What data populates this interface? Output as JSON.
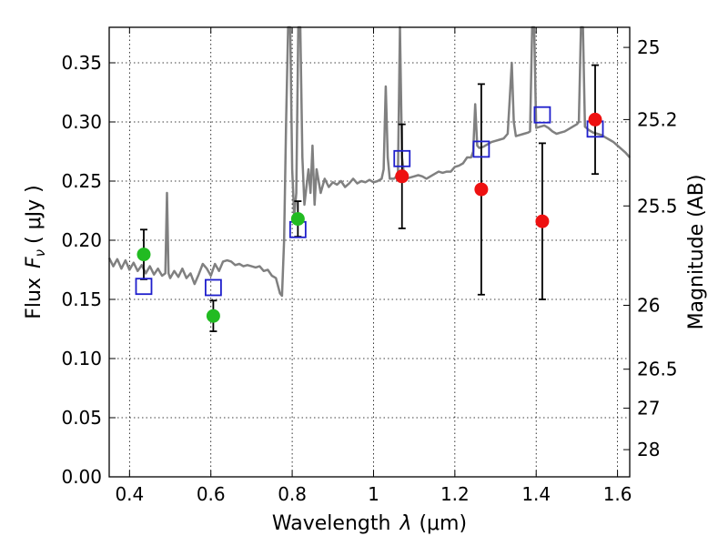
{
  "chart_data": {
    "type": "scatter",
    "xlabel_text": "Wavelength",
    "xlabel_symbol": "λ",
    "xlabel_unit": "(μm)",
    "ylabel_text": "Flux",
    "ylabel_symbol": "F",
    "ylabel_subscript": "ν",
    "ylabel_unit": "(  μJy )",
    "ylabel_right": "Magnitude (AB)",
    "xlim": [
      0.35,
      1.63
    ],
    "ylim": [
      0.0,
      0.38
    ],
    "grid": true,
    "x_ticks": [
      0.4,
      0.6,
      0.8,
      1.0,
      1.2,
      1.4,
      1.6
    ],
    "x_tick_labels": [
      "0.4",
      "0.6",
      "0.8",
      "1",
      "1.2",
      "1.4",
      "1.6"
    ],
    "y_ticks": [
      0.0,
      0.05,
      0.1,
      0.15,
      0.2,
      0.25,
      0.3,
      0.35
    ],
    "y_tick_labels": [
      "0.00",
      "0.05",
      "0.10",
      "0.15",
      "0.20",
      "0.25",
      "0.30",
      "0.35"
    ],
    "right_ticks": [
      {
        "label": "25",
        "flux": 0.363
      },
      {
        "label": "25.2",
        "flux": 0.302
      },
      {
        "label": "25.5",
        "flux": 0.229
      },
      {
        "label": "26",
        "flux": 0.145
      },
      {
        "label": "26.5",
        "flux": 0.091
      },
      {
        "label": "27",
        "flux": 0.058
      },
      {
        "label": "28",
        "flux": 0.023
      }
    ],
    "colors": {
      "model": "#808080",
      "green": "#22bb22",
      "red": "#ee1111",
      "open_square": "#1f1fcc",
      "errorbar": "#000000"
    },
    "model_spectrum": [
      [
        0.35,
        0.185
      ],
      [
        0.36,
        0.178
      ],
      [
        0.37,
        0.184
      ],
      [
        0.38,
        0.176
      ],
      [
        0.39,
        0.183
      ],
      [
        0.4,
        0.175
      ],
      [
        0.41,
        0.181
      ],
      [
        0.42,
        0.174
      ],
      [
        0.43,
        0.179
      ],
      [
        0.44,
        0.172
      ],
      [
        0.45,
        0.178
      ],
      [
        0.46,
        0.171
      ],
      [
        0.47,
        0.176
      ],
      [
        0.48,
        0.17
      ],
      [
        0.488,
        0.172
      ],
      [
        0.492,
        0.24
      ],
      [
        0.496,
        0.172
      ],
      [
        0.5,
        0.168
      ],
      [
        0.51,
        0.174
      ],
      [
        0.52,
        0.169
      ],
      [
        0.53,
        0.176
      ],
      [
        0.54,
        0.168
      ],
      [
        0.55,
        0.172
      ],
      [
        0.56,
        0.163
      ],
      [
        0.57,
        0.171
      ],
      [
        0.58,
        0.18
      ],
      [
        0.59,
        0.176
      ],
      [
        0.6,
        0.17
      ],
      [
        0.61,
        0.18
      ],
      [
        0.62,
        0.174
      ],
      [
        0.63,
        0.182
      ],
      [
        0.64,
        0.183
      ],
      [
        0.65,
        0.182
      ],
      [
        0.66,
        0.179
      ],
      [
        0.67,
        0.18
      ],
      [
        0.68,
        0.178
      ],
      [
        0.69,
        0.179
      ],
      [
        0.7,
        0.178
      ],
      [
        0.71,
        0.177
      ],
      [
        0.72,
        0.178
      ],
      [
        0.73,
        0.174
      ],
      [
        0.74,
        0.175
      ],
      [
        0.75,
        0.17
      ],
      [
        0.76,
        0.168
      ],
      [
        0.77,
        0.155
      ],
      [
        0.775,
        0.153
      ],
      [
        0.78,
        0.2
      ],
      [
        0.785,
        0.3
      ],
      [
        0.79,
        0.38
      ],
      [
        0.795,
        0.38
      ],
      [
        0.8,
        0.26
      ],
      [
        0.805,
        0.22
      ],
      [
        0.81,
        0.24
      ],
      [
        0.815,
        0.38
      ],
      [
        0.82,
        0.38
      ],
      [
        0.825,
        0.27
      ],
      [
        0.83,
        0.23
      ],
      [
        0.84,
        0.26
      ],
      [
        0.845,
        0.24
      ],
      [
        0.85,
        0.28
      ],
      [
        0.855,
        0.23
      ],
      [
        0.86,
        0.26
      ],
      [
        0.87,
        0.24
      ],
      [
        0.88,
        0.252
      ],
      [
        0.89,
        0.245
      ],
      [
        0.9,
        0.249
      ],
      [
        0.91,
        0.247
      ],
      [
        0.92,
        0.25
      ],
      [
        0.93,
        0.245
      ],
      [
        0.94,
        0.248
      ],
      [
        0.95,
        0.252
      ],
      [
        0.96,
        0.248
      ],
      [
        0.97,
        0.25
      ],
      [
        0.98,
        0.249
      ],
      [
        0.99,
        0.251
      ],
      [
        1.0,
        0.249
      ],
      [
        1.01,
        0.25
      ],
      [
        1.02,
        0.252
      ],
      [
        1.025,
        0.26
      ],
      [
        1.03,
        0.33
      ],
      [
        1.035,
        0.27
      ],
      [
        1.04,
        0.252
      ],
      [
        1.05,
        0.252
      ],
      [
        1.06,
        0.255
      ],
      [
        1.065,
        0.38
      ],
      [
        1.07,
        0.27
      ],
      [
        1.075,
        0.255
      ],
      [
        1.08,
        0.252
      ],
      [
        1.09,
        0.253
      ],
      [
        1.1,
        0.254
      ],
      [
        1.11,
        0.255
      ],
      [
        1.12,
        0.254
      ],
      [
        1.13,
        0.252
      ],
      [
        1.14,
        0.254
      ],
      [
        1.15,
        0.256
      ],
      [
        1.16,
        0.258
      ],
      [
        1.17,
        0.257
      ],
      [
        1.18,
        0.258
      ],
      [
        1.19,
        0.258
      ],
      [
        1.2,
        0.262
      ],
      [
        1.21,
        0.263
      ],
      [
        1.22,
        0.265
      ],
      [
        1.23,
        0.27
      ],
      [
        1.24,
        0.27
      ],
      [
        1.245,
        0.275
      ],
      [
        1.25,
        0.315
      ],
      [
        1.255,
        0.28
      ],
      [
        1.26,
        0.278
      ],
      [
        1.27,
        0.279
      ],
      [
        1.28,
        0.281
      ],
      [
        1.29,
        0.283
      ],
      [
        1.3,
        0.284
      ],
      [
        1.31,
        0.285
      ],
      [
        1.32,
        0.286
      ],
      [
        1.33,
        0.29
      ],
      [
        1.335,
        0.32
      ],
      [
        1.34,
        0.35
      ],
      [
        1.345,
        0.3
      ],
      [
        1.35,
        0.288
      ],
      [
        1.36,
        0.289
      ],
      [
        1.37,
        0.29
      ],
      [
        1.38,
        0.291
      ],
      [
        1.385,
        0.292
      ],
      [
        1.39,
        0.38
      ],
      [
        1.395,
        0.38
      ],
      [
        1.4,
        0.295
      ],
      [
        1.41,
        0.296
      ],
      [
        1.42,
        0.297
      ],
      [
        1.43,
        0.295
      ],
      [
        1.44,
        0.292
      ],
      [
        1.45,
        0.29
      ],
      [
        1.46,
        0.291
      ],
      [
        1.47,
        0.292
      ],
      [
        1.48,
        0.294
      ],
      [
        1.49,
        0.296
      ],
      [
        1.5,
        0.298
      ],
      [
        1.505,
        0.3
      ],
      [
        1.51,
        0.38
      ],
      [
        1.515,
        0.38
      ],
      [
        1.52,
        0.296
      ],
      [
        1.53,
        0.293
      ],
      [
        1.54,
        0.291
      ],
      [
        1.55,
        0.29
      ],
      [
        1.56,
        0.289
      ],
      [
        1.57,
        0.287
      ],
      [
        1.58,
        0.285
      ],
      [
        1.59,
        0.283
      ],
      [
        1.6,
        0.28
      ],
      [
        1.61,
        0.277
      ],
      [
        1.62,
        0.274
      ],
      [
        1.63,
        0.27
      ]
    ],
    "open_squares": [
      {
        "x": 0.435,
        "y": 0.161
      },
      {
        "x": 0.606,
        "y": 0.16
      },
      {
        "x": 0.814,
        "y": 0.209
      },
      {
        "x": 1.07,
        "y": 0.269
      },
      {
        "x": 1.265,
        "y": 0.277
      },
      {
        "x": 1.415,
        "y": 0.306
      },
      {
        "x": 1.545,
        "y": 0.294
      }
    ],
    "green_points": [
      {
        "x": 0.435,
        "y": 0.188,
        "err": 0.021
      },
      {
        "x": 0.606,
        "y": 0.136,
        "err": 0.013
      },
      {
        "x": 0.814,
        "y": 0.218,
        "err": 0.015
      }
    ],
    "red_points": [
      {
        "x": 1.07,
        "y": 0.254,
        "err": 0.044
      },
      {
        "x": 1.265,
        "y": 0.243,
        "err": 0.089
      },
      {
        "x": 1.415,
        "y": 0.216,
        "err": 0.066
      },
      {
        "x": 1.545,
        "y": 0.302,
        "err": 0.046
      }
    ]
  }
}
